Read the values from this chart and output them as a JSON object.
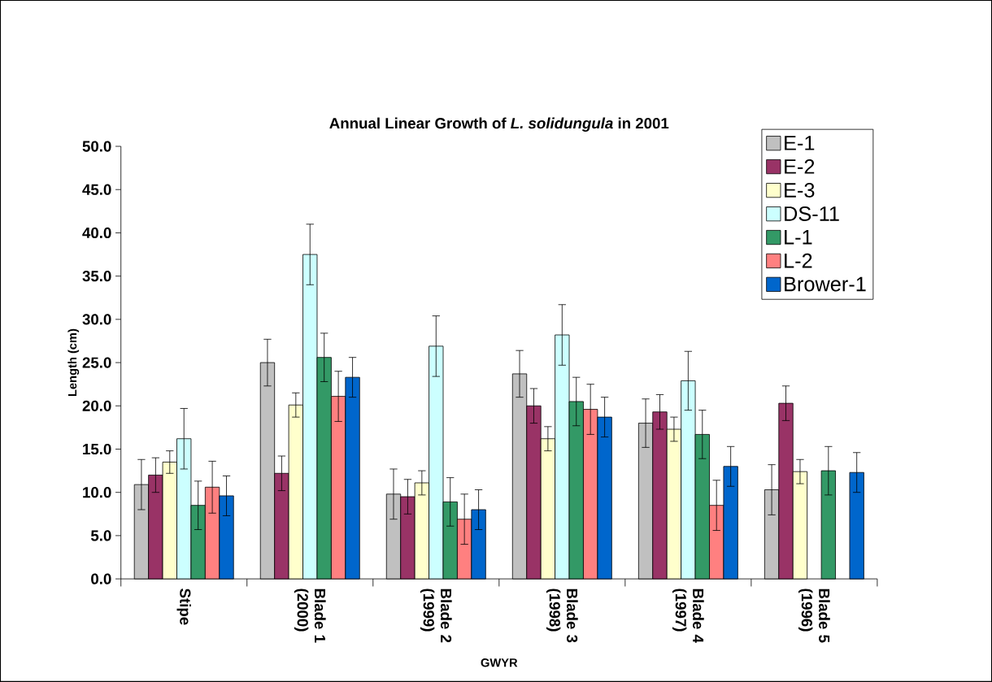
{
  "chart_data": {
    "type": "bar",
    "title": "Annual Linear Growth of *L. solidungula* in 2001",
    "xlabel": "GWYR",
    "ylabel": "Length (cm)",
    "categories": [
      "Stipe",
      "Blade 1 (2000)",
      "Blade 2 (1999)",
      "Blade 3 (1998)",
      "Blade 4 (1997)",
      "Blade 5 (1996)"
    ],
    "series": [
      {
        "name": "E-1",
        "color": "#c0c0c0",
        "values": [
          10.9,
          25.0,
          9.8,
          23.7,
          18.0,
          10.3
        ],
        "errors": [
          2.9,
          2.7,
          2.9,
          2.7,
          2.8,
          2.9
        ]
      },
      {
        "name": "E-2",
        "color": "#993366",
        "values": [
          12.0,
          12.2,
          9.5,
          20.0,
          19.3,
          20.3
        ],
        "errors": [
          2.0,
          2.0,
          2.0,
          2.0,
          2.0,
          2.0
        ]
      },
      {
        "name": "E-3",
        "color": "#ffffcc",
        "values": [
          13.5,
          20.1,
          11.1,
          16.2,
          17.3,
          12.4
        ],
        "errors": [
          1.3,
          1.4,
          1.4,
          1.4,
          1.4,
          1.4
        ]
      },
      {
        "name": "DS-11",
        "color": "#ccffff",
        "values": [
          16.2,
          37.5,
          26.9,
          28.2,
          22.9,
          null
        ],
        "errors": [
          3.5,
          3.5,
          3.5,
          3.5,
          3.4,
          null
        ]
      },
      {
        "name": "L-1",
        "color": "#339966",
        "values": [
          8.5,
          25.6,
          8.9,
          20.5,
          16.7,
          12.5
        ],
        "errors": [
          2.8,
          2.8,
          2.8,
          2.8,
          2.8,
          2.8
        ]
      },
      {
        "name": "L-2",
        "color": "#ff8080",
        "values": [
          10.6,
          21.1,
          6.9,
          19.6,
          8.5,
          null
        ],
        "errors": [
          3.0,
          2.9,
          2.9,
          2.9,
          2.9,
          null
        ]
      },
      {
        "name": "Brower-1",
        "color": "#0066cc",
        "values": [
          9.6,
          23.3,
          8.0,
          18.7,
          13.0,
          12.3
        ],
        "errors": [
          2.3,
          2.3,
          2.3,
          2.3,
          2.3,
          2.3
        ]
      }
    ],
    "ylim": [
      0,
      50
    ],
    "yticks": [
      {
        "value": 0,
        "label": "0.0"
      },
      {
        "value": 5,
        "label": "5.0"
      },
      {
        "value": 10,
        "label": "10.0"
      },
      {
        "value": 15,
        "label": "15.0"
      },
      {
        "value": 20,
        "label": "20.0"
      },
      {
        "value": 25,
        "label": "25.0"
      },
      {
        "value": 30,
        "label": "30.0"
      },
      {
        "value": 35,
        "label": "35.0"
      },
      {
        "value": 40,
        "label": "40.0"
      },
      {
        "value": 45,
        "label": "45.0"
      },
      {
        "value": 50,
        "label": "50.0"
      }
    ],
    "grid": false,
    "legend": "top right"
  }
}
